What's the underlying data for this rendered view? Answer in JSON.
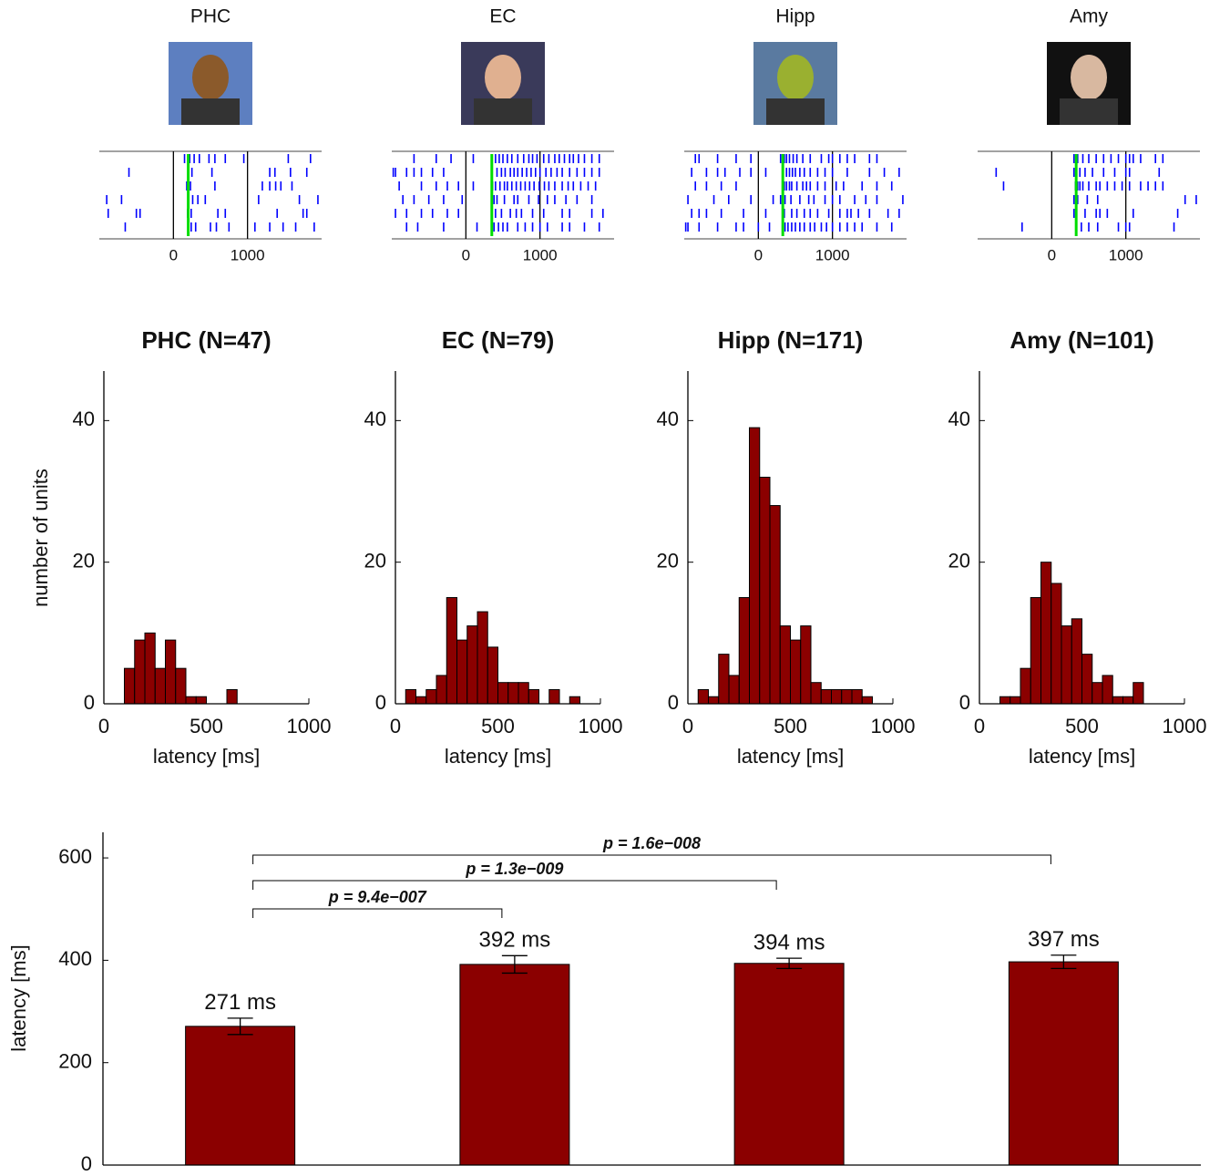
{
  "chart_data": [
    {
      "type": "raster",
      "title": "PHC",
      "xlim": [
        -1000,
        2000
      ],
      "xticks": [
        0,
        1000
      ],
      "response_onset": 200,
      "color": "#0000ff",
      "onset_color": "#00dd00",
      "trials": [
        [
          150,
          220,
          280,
          350,
          480,
          560,
          700,
          950,
          1550,
          1850
        ],
        [
          -600,
          250,
          520,
          1300,
          1370,
          1580,
          1800
        ],
        [
          180,
          230,
          560,
          1200,
          1300,
          1380,
          1450,
          1600
        ],
        [
          -900,
          -700,
          200,
          260,
          330,
          430,
          1150,
          1700,
          1950
        ],
        [
          -880,
          -500,
          -450,
          190,
          240,
          600,
          700,
          1400,
          1750,
          1800
        ],
        [
          -650,
          200,
          240,
          300,
          500,
          580,
          750,
          1100,
          1300,
          1480,
          1650,
          1900
        ]
      ]
    },
    {
      "type": "raster",
      "title": "EC",
      "xlim": [
        -1000,
        2000
      ],
      "xticks": [
        0,
        1000
      ],
      "response_onset": 350,
      "color": "#0000ff",
      "onset_color": "#00dd00",
      "trials": [
        [
          -700,
          -400,
          -200,
          100,
          400,
          450,
          500,
          560,
          620,
          700,
          780,
          850,
          900,
          960,
          1050,
          1120,
          1200,
          1260,
          1330,
          1400,
          1450,
          1520,
          1600,
          1700,
          1800
        ],
        [
          -980,
          -950,
          -800,
          -700,
          -600,
          -450,
          -300,
          350,
          420,
          480,
          530,
          600,
          650,
          700,
          760,
          820,
          880,
          940,
          1000,
          1080,
          1150,
          1230,
          1300,
          1400,
          1500,
          1600,
          1700,
          1800
        ],
        [
          -900,
          -600,
          -400,
          -250,
          -100,
          100,
          360,
          400,
          460,
          520,
          560,
          620,
          680,
          740,
          800,
          860,
          920,
          990,
          1060,
          1120,
          1200,
          1300,
          1380,
          1450,
          1550,
          1650,
          1750
        ],
        [
          -850,
          -700,
          -500,
          -300,
          -50,
          380,
          420,
          520,
          650,
          700,
          850,
          980,
          1100,
          1200,
          1350,
          1500,
          1700
        ],
        [
          -950,
          -800,
          -600,
          -450,
          -250,
          -100,
          350,
          400,
          480,
          600,
          680,
          750,
          900,
          1050,
          1300,
          1400,
          1700,
          1850
        ],
        [
          -800,
          -650,
          -300,
          150,
          380,
          440,
          500,
          560,
          700,
          800,
          900,
          1000,
          1100,
          1300,
          1400,
          1600,
          1800
        ]
      ]
    },
    {
      "type": "raster",
      "title": "Hipp",
      "xlim": [
        -1000,
        2000
      ],
      "xticks": [
        0,
        1000
      ],
      "response_onset": 330,
      "color": "#0000ff",
      "onset_color": "#00dd00",
      "trials": [
        [
          -850,
          -800,
          -550,
          -300,
          -100,
          300,
          350,
          380,
          420,
          470,
          520,
          600,
          700,
          850,
          950,
          1000,
          1100,
          1200,
          1300,
          1500,
          1600
        ],
        [
          -900,
          -700,
          -550,
          -450,
          -250,
          -100,
          100,
          330,
          380,
          420,
          460,
          500,
          560,
          620,
          700,
          800,
          900,
          1000,
          1200,
          1500,
          1700,
          1900
        ],
        [
          -850,
          -700,
          -500,
          -300,
          350,
          380,
          420,
          450,
          520,
          600,
          650,
          700,
          800,
          900,
          1050,
          1150,
          1400,
          1600,
          1800
        ],
        [
          -950,
          -600,
          -400,
          -100,
          200,
          300,
          360,
          440,
          560,
          680,
          750,
          900,
          1000,
          1100,
          1300,
          1450,
          1600,
          1950
        ],
        [
          -900,
          -800,
          -700,
          -500,
          -200,
          100,
          350,
          450,
          520,
          620,
          700,
          800,
          950,
          1100,
          1200,
          1250,
          1350,
          1500,
          1750,
          1900
        ],
        [
          -980,
          -950,
          -800,
          -550,
          -300,
          -200,
          0,
          150,
          330,
          360,
          400,
          450,
          500,
          560,
          620,
          700,
          760,
          850,
          920,
          1000,
          1100,
          1200,
          1300,
          1400,
          1600,
          1800
        ]
      ]
    },
    {
      "type": "raster",
      "title": "Amy",
      "xlim": [
        -1000,
        2000
      ],
      "xticks": [
        0,
        1000
      ],
      "response_onset": 330,
      "color": "#0000ff",
      "onset_color": "#00dd00",
      "trials": [
        [
          300,
          350,
          420,
          500,
          600,
          700,
          800,
          900,
          1000,
          1050,
          1100,
          1200,
          1400,
          1500
        ],
        [
          -750,
          300,
          380,
          450,
          550,
          700,
          850,
          1000,
          1050,
          1450
        ],
        [
          -650,
          320,
          350,
          380,
          420,
          500,
          600,
          650,
          750,
          850,
          950,
          1050,
          1200,
          1300,
          1400,
          1500
        ],
        [
          300,
          350,
          480,
          620,
          1800,
          1950
        ],
        [
          300,
          450,
          600,
          650,
          750,
          1100,
          1700
        ],
        [
          -400,
          330,
          400,
          500,
          620,
          900,
          1000,
          1050,
          1650
        ]
      ]
    },
    {
      "type": "histogram",
      "title": "PHC (N=47)",
      "xlabel": "latency [ms]",
      "ylabel": "number of units",
      "color": "#8b0000",
      "bins": [
        0,
        50,
        100,
        150,
        200,
        250,
        300,
        350,
        400,
        450,
        500,
        550,
        600,
        650,
        700,
        750,
        800,
        850,
        900,
        950,
        1000
      ],
      "counts": [
        0,
        0,
        5,
        9,
        10,
        5,
        9,
        5,
        1,
        1,
        0,
        0,
        2,
        0,
        0,
        0,
        0,
        0,
        0,
        0
      ],
      "xlim": [
        0,
        1000
      ],
      "xticks": [
        0,
        500,
        1000
      ],
      "ylim": [
        0,
        47
      ],
      "yticks": [
        0,
        20,
        40
      ]
    },
    {
      "type": "histogram",
      "title": "EC (N=79)",
      "xlabel": "latency [ms]",
      "color": "#8b0000",
      "bins": [
        0,
        50,
        100,
        150,
        200,
        250,
        300,
        350,
        400,
        450,
        500,
        550,
        600,
        650,
        700,
        750,
        800,
        850,
        900,
        950,
        1000
      ],
      "counts": [
        0,
        2,
        1,
        2,
        4,
        15,
        9,
        11,
        13,
        8,
        3,
        3,
        3,
        2,
        0,
        2,
        0,
        1,
        0,
        0
      ],
      "xlim": [
        0,
        1000
      ],
      "xticks": [
        0,
        500,
        1000
      ],
      "ylim": [
        0,
        47
      ],
      "yticks": [
        0,
        20,
        40
      ]
    },
    {
      "type": "histogram",
      "title": "Hipp (N=171)",
      "xlabel": "latency [ms]",
      "color": "#8b0000",
      "bins": [
        0,
        50,
        100,
        150,
        200,
        250,
        300,
        350,
        400,
        450,
        500,
        550,
        600,
        650,
        700,
        750,
        800,
        850,
        900,
        950,
        1000
      ],
      "counts": [
        0,
        2,
        1,
        7,
        4,
        15,
        39,
        32,
        28,
        11,
        9,
        11,
        3,
        2,
        2,
        2,
        2,
        1,
        0,
        0
      ],
      "xlim": [
        0,
        1000
      ],
      "xticks": [
        0,
        500,
        1000
      ],
      "ylim": [
        0,
        47
      ],
      "yticks": [
        0,
        20,
        40
      ]
    },
    {
      "type": "histogram",
      "title": "Amy (N=101)",
      "xlabel": "latency [ms]",
      "color": "#8b0000",
      "bins": [
        0,
        50,
        100,
        150,
        200,
        250,
        300,
        350,
        400,
        450,
        500,
        550,
        600,
        650,
        700,
        750,
        800,
        850,
        900,
        950,
        1000
      ],
      "counts": [
        0,
        0,
        1,
        1,
        5,
        15,
        20,
        17,
        11,
        12,
        7,
        3,
        4,
        1,
        1,
        3,
        0,
        0,
        0,
        0
      ],
      "xlim": [
        0,
        1000
      ],
      "xticks": [
        0,
        500,
        1000
      ],
      "ylim": [
        0,
        47
      ],
      "yticks": [
        0,
        20,
        40
      ]
    },
    {
      "type": "bar",
      "ylabel": "latency [ms]",
      "color": "#8b0000",
      "categories": [
        null,
        null,
        null,
        null
      ],
      "values": [
        271,
        392,
        394,
        397
      ],
      "value_labels": [
        "271 ms",
        "392 ms",
        "394 ms",
        "397 ms"
      ],
      "errors": [
        16,
        17,
        10,
        13
      ],
      "annotations": [
        "p = 9.4e−007",
        "p = 1.3e−009",
        "p = 1.6e−008"
      ],
      "ylim": [
        0,
        650
      ],
      "yticks": [
        0,
        200,
        400,
        600
      ]
    }
  ]
}
